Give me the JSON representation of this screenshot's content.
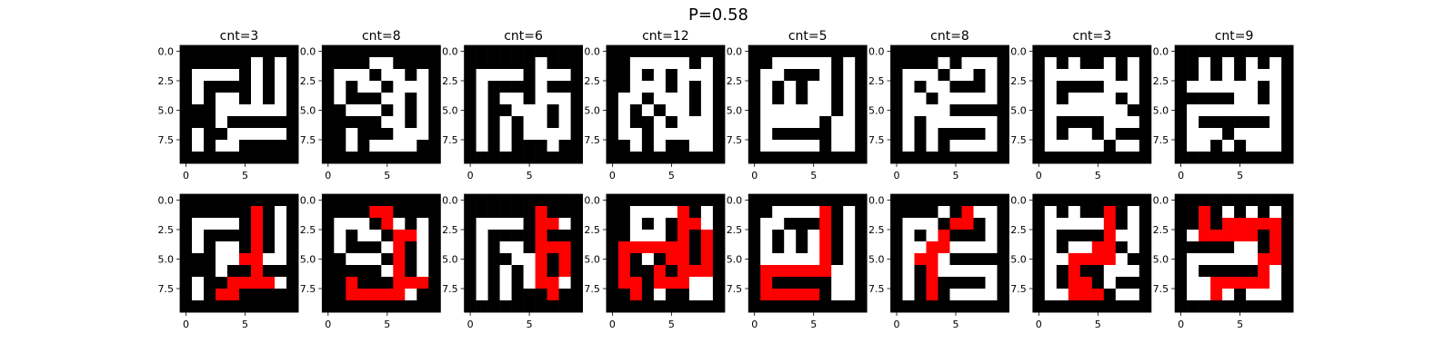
{
  "figure": {
    "title": "P=0.58"
  },
  "colors": {
    "wall": "#000000",
    "open": "#ffffff",
    "path": "#ff0000"
  },
  "chart_data": {
    "type": "heatmap",
    "title": "P=0.58",
    "grid_size": 10,
    "x_ticks": [
      "0",
      "5"
    ],
    "y_ticks": [
      "0.0",
      "2.5",
      "5.0",
      "7.5"
    ],
    "legend": "0 = wall (black), 1 = open cell (white), 2 = solution path (red)",
    "panels": [
      {
        "title": "cnt=3",
        "grid": [
          "0000000000",
          "0000001010",
          "0111101010",
          "0100001010",
          "0101101010",
          "0001111110",
          "0001000000",
          "0100111110",
          "0101100000",
          "0000000000"
        ]
      },
      {
        "title": "cnt=8",
        "grid": [
          "0000000000",
          "0000110000",
          "0111011010",
          "0101101110",
          "0100011010",
          "0011101010",
          "0000011010",
          "0010001110",
          "0010111100",
          "0000000000"
        ]
      },
      {
        "title": "cnt=6",
        "grid": [
          "0000000000",
          "0000001000",
          "0111101110",
          "0100001000",
          "0101101110",
          "0100111010",
          "0101011010",
          "0101011110",
          "0101000100",
          "0000000000"
        ]
      },
      {
        "title": "cnt=12",
        "grid": [
          "0000000000",
          "0011111010",
          "0010101110",
          "0011101010",
          "0110111010",
          "0101011010",
          "0100101110",
          "0110111110",
          "0010100110",
          "0000000000"
        ]
      },
      {
        "title": "cnt=5",
        "grid": [
          "0000000000",
          "0011111010",
          "0110001010",
          "0101011010",
          "0101011010",
          "0111111010",
          "0111110110",
          "0100000110",
          "0111110110",
          "0000000000"
        ]
      },
      {
        "title": "cnt=8",
        "grid": [
          "0000000000",
          "0000101110",
          "0111011010",
          "0101100010",
          "0110111110",
          "0111100000",
          "0101111110",
          "0101000010",
          "0101011110",
          "0000000000"
        ]
      },
      {
        "title": "cnt=3",
        "grid": [
          "0000000000",
          "0101001010",
          "0111111010",
          "0100001110",
          "0101111010",
          "0111111100",
          "0100001110",
          "0101101000",
          "0111110110",
          "0000000000"
        ]
      },
      {
        "title": "cnt=9",
        "grid": [
          "0000000000",
          "0010101010",
          "0010101110",
          "0111111010",
          "0000011010",
          "0111111110",
          "0100000010",
          "0111011110",
          "0110101110",
          "0000000000"
        ]
      }
    ],
    "solution_panels": [
      {
        "grid": [
          "0000000000",
          "0000002010",
          "0111102010",
          "0100002010",
          "0101102010",
          "0001122110",
          "0001002000",
          "0100222210",
          "0102200000",
          "0000000000"
        ]
      },
      {
        "grid": [
          "0000000000",
          "0000220000",
          "0111021010",
          "0101102210",
          "0100012010",
          "0011102010",
          "0000012010",
          "0020002220",
          "0022222100",
          "0000000000"
        ]
      },
      {
        "grid": [
          "0000000000",
          "0000002000",
          "0111102210",
          "0100002000",
          "0101102220",
          "0100112020",
          "0101012020",
          "0101012210",
          "0101000200",
          "0000000000"
        ]
      },
      {
        "grid": [
          "0000000000",
          "0011112010",
          "0010102210",
          "0011102020",
          "0222222020",
          "0201022020",
          "0200202220",
          "0220222110",
          "0020100110",
          "0000000000"
        ]
      },
      {
        "grid": [
          "0000000000",
          "0011112010",
          "0110002010",
          "0101012010",
          "0101012010",
          "0111112010",
          "0222222110",
          "0200000110",
          "0222220110",
          "0000000000"
        ]
      },
      {
        "grid": [
          "0000000000",
          "0000102110",
          "0111022010",
          "0101200010",
          "0112211110",
          "0122100000",
          "0102111110",
          "0102000010",
          "0102011110",
          "0000000000"
        ]
      },
      {
        "grid": [
          "0000000000",
          "0101002010",
          "0111112010",
          "0100002110",
          "0101122010",
          "0112222100",
          "0102001110",
          "0102201000",
          "0112220110",
          "0000000000"
        ]
      },
      {
        "grid": [
          "0000000000",
          "0020101010",
          "0020222220",
          "0122222020",
          "0000011020",
          "0111111220",
          "0100000210",
          "0112222210",
          "0112101110",
          "0000000000"
        ]
      }
    ]
  }
}
